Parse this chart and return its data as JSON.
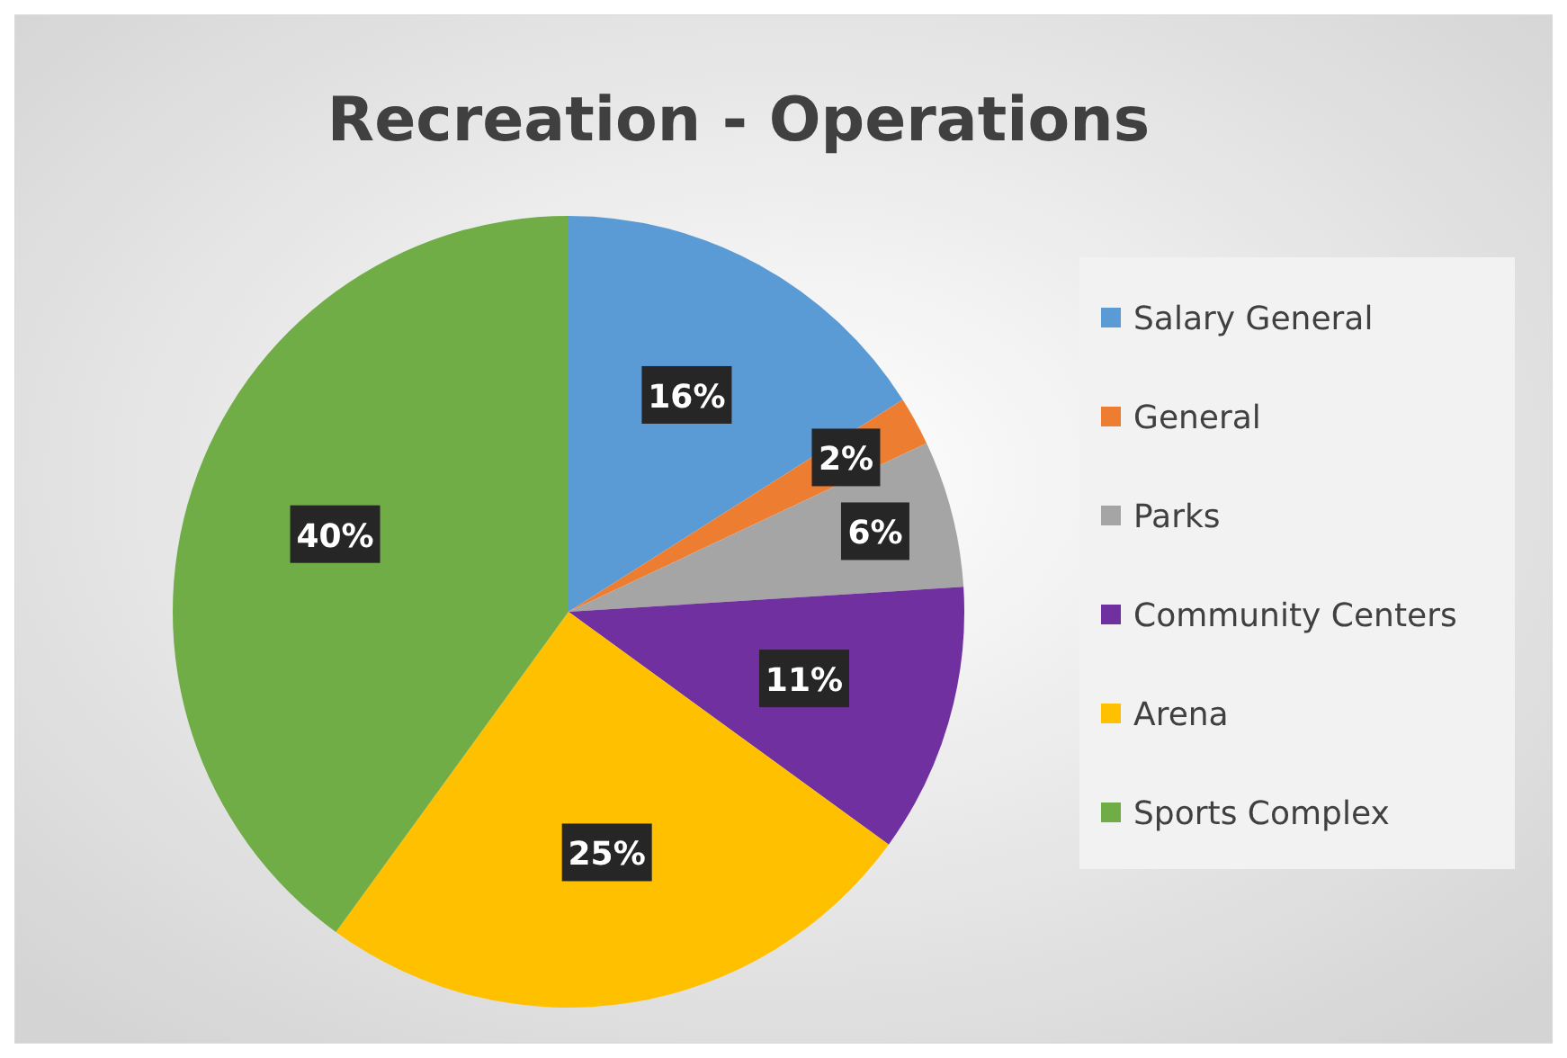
{
  "chart_data": {
    "type": "pie",
    "title": "Recreation - Operations",
    "categories": [
      "Salary General",
      "General",
      "Parks",
      "Community Centers",
      "Arena",
      "Sports Complex"
    ],
    "values": [
      16,
      2,
      6,
      11,
      25,
      40
    ],
    "colors": [
      "#5b9bd5",
      "#ed7d31",
      "#a5a5a5",
      "#7030a0",
      "#ffc000",
      "#70ad47"
    ],
    "value_labels": [
      "16%",
      "2%",
      "6%",
      "11%",
      "25%",
      "40%"
    ],
    "legend": "right"
  }
}
